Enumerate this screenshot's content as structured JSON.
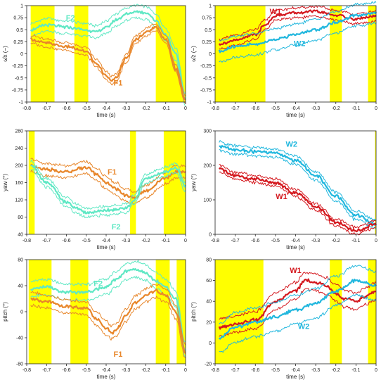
{
  "colors": {
    "shade": "#ffff00",
    "F1": "#e8862a",
    "F2": "#5fe8c4",
    "W1": "#d4181e",
    "W2": "#21b7de"
  },
  "chart_data": [
    {
      "type": "line",
      "id": "panel-tl",
      "xlabel": "time (s)",
      "ylabel": "ω̂x (−)",
      "xlim": [
        -0.8,
        0
      ],
      "ylim": [
        -1,
        1
      ],
      "xticks": [
        -0.8,
        -0.7,
        -0.6,
        -0.5,
        -0.4,
        -0.3,
        -0.2,
        -0.1,
        0
      ],
      "yticks": [
        -1,
        -0.75,
        -0.5,
        -0.25,
        0,
        0.25,
        0.5,
        0.75,
        1
      ],
      "shaded_intervals": [
        [
          -0.78,
          -0.66
        ],
        [
          -0.56,
          -0.49
        ],
        [
          -0.15,
          0
        ]
      ],
      "series": [
        {
          "name": "F2",
          "color": "F2",
          "x": [
            -0.78,
            -0.7,
            -0.6,
            -0.5,
            -0.45,
            -0.4,
            -0.35,
            -0.3,
            -0.25,
            -0.2,
            -0.15,
            -0.1,
            -0.05,
            0
          ],
          "values": [
            0.5,
            0.6,
            0.55,
            0.5,
            0.45,
            0.55,
            0.7,
            0.82,
            0.88,
            0.85,
            0.7,
            0.4,
            0.0,
            -0.95
          ],
          "band": 0.13
        },
        {
          "name": "F1",
          "color": "F1",
          "x": [
            -0.78,
            -0.7,
            -0.6,
            -0.5,
            -0.45,
            -0.4,
            -0.37,
            -0.35,
            -0.3,
            -0.25,
            -0.2,
            -0.15,
            -0.1,
            -0.05,
            0
          ],
          "values": [
            0.3,
            0.22,
            0.15,
            0.05,
            -0.2,
            -0.45,
            -0.55,
            -0.5,
            -0.1,
            0.3,
            0.45,
            0.55,
            0.3,
            -0.3,
            -0.95
          ],
          "band": 0.08
        }
      ],
      "labels": [
        {
          "text": "F2",
          "series": "F2",
          "x": -0.58,
          "y": 0.75
        },
        {
          "text": "F1",
          "series": "F1",
          "x": -0.34,
          "y": -0.6
        }
      ]
    },
    {
      "type": "line",
      "id": "panel-tr",
      "xlabel": "time (s)",
      "ylabel": "ω̂z (−)",
      "xlim": [
        -0.8,
        0
      ],
      "ylim": [
        -1,
        1
      ],
      "xticks": [
        -0.8,
        -0.7,
        -0.6,
        -0.5,
        -0.4,
        -0.3,
        -0.2,
        -0.1,
        0
      ],
      "yticks": [
        -1,
        -0.75,
        -0.5,
        -0.25,
        0,
        0.25,
        0.5,
        0.75,
        1
      ],
      "shaded_intervals": [
        [
          -0.8,
          -0.55
        ],
        [
          -0.23,
          -0.17
        ],
        [
          -0.04,
          0
        ]
      ],
      "series": [
        {
          "name": "W1",
          "color": "W1",
          "x": [
            -0.78,
            -0.7,
            -0.6,
            -0.55,
            -0.5,
            -0.4,
            -0.3,
            -0.2,
            -0.1,
            -0.05,
            0
          ],
          "values": [
            0.2,
            0.28,
            0.4,
            0.6,
            0.8,
            0.85,
            0.88,
            0.8,
            0.72,
            0.75,
            0.78
          ],
          "band": 0.1
        },
        {
          "name": "W2",
          "color": "W2",
          "x": [
            -0.78,
            -0.7,
            -0.6,
            -0.5,
            -0.4,
            -0.3,
            -0.2,
            -0.1,
            0
          ],
          "values": [
            0.05,
            0.15,
            0.2,
            0.3,
            0.4,
            0.5,
            0.65,
            0.8,
            0.85
          ],
          "band": 0.22
        }
      ],
      "labels": [
        {
          "text": "W1",
          "series": "W1",
          "x": -0.5,
          "y": 0.88
        },
        {
          "text": "W2",
          "series": "W2",
          "x": -0.38,
          "y": 0.22
        }
      ]
    },
    {
      "type": "line",
      "id": "panel-ml",
      "xlabel": "time (s)",
      "ylabel": "yaw (°)",
      "xlim": [
        -0.8,
        0
      ],
      "ylim": [
        40,
        280
      ],
      "xticks": [
        -0.8,
        -0.7,
        -0.6,
        -0.5,
        -0.4,
        -0.3,
        -0.2,
        -0.1,
        0
      ],
      "yticks": [
        40,
        80,
        120,
        160,
        200,
        240,
        280
      ],
      "shaded_intervals": [
        [
          -0.79,
          -0.76
        ],
        [
          -0.28,
          -0.25
        ],
        [
          -0.11,
          0
        ]
      ],
      "series": [
        {
          "name": "F1",
          "color": "F1",
          "x": [
            -0.78,
            -0.7,
            -0.6,
            -0.5,
            -0.45,
            -0.4,
            -0.35,
            -0.3,
            -0.26,
            -0.2,
            -0.1,
            -0.05,
            0
          ],
          "values": [
            200,
            190,
            185,
            195,
            180,
            160,
            145,
            130,
            125,
            140,
            170,
            185,
            185
          ],
          "band": 14
        },
        {
          "name": "F2",
          "color": "F2",
          "x": [
            -0.78,
            -0.7,
            -0.6,
            -0.55,
            -0.5,
            -0.4,
            -0.3,
            -0.26,
            -0.2,
            -0.1,
            -0.05,
            0
          ],
          "values": [
            200,
            160,
            115,
            100,
            90,
            95,
            100,
            120,
            170,
            185,
            195,
            150
          ],
          "band": 10
        }
      ],
      "labels": [
        {
          "text": "F1",
          "series": "F1",
          "x": -0.37,
          "y": 185
        },
        {
          "text": "F2",
          "series": "F2",
          "x": -0.35,
          "y": 58
        }
      ]
    },
    {
      "type": "line",
      "id": "panel-mr",
      "xlabel": "time (s)",
      "ylabel": "yaw (°)",
      "xlim": [
        -0.8,
        0
      ],
      "ylim": [
        0,
        300
      ],
      "xticks": [
        -0.8,
        -0.7,
        -0.6,
        -0.5,
        -0.4,
        -0.3,
        -0.2,
        -0.1,
        0
      ],
      "yticks": [
        0,
        100,
        200,
        300
      ],
      "shaded_intervals": [
        [
          -0.005,
          0
        ]
      ],
      "series": [
        {
          "name": "W2",
          "color": "W2",
          "x": [
            -0.78,
            -0.7,
            -0.6,
            -0.5,
            -0.4,
            -0.3,
            -0.2,
            -0.1,
            0
          ],
          "values": [
            255,
            245,
            240,
            235,
            215,
            170,
            110,
            55,
            30
          ],
          "band": 12
        },
        {
          "name": "W1",
          "color": "W1",
          "x": [
            -0.78,
            -0.7,
            -0.6,
            -0.5,
            -0.4,
            -0.3,
            -0.2,
            -0.1,
            0
          ],
          "values": [
            190,
            170,
            160,
            150,
            120,
            80,
            35,
            10,
            30
          ],
          "band": 10
        }
      ],
      "labels": [
        {
          "text": "W2",
          "series": "W2",
          "x": -0.42,
          "y": 262
        },
        {
          "text": "W1",
          "series": "W1",
          "x": -0.47,
          "y": 110
        }
      ]
    },
    {
      "type": "line",
      "id": "panel-bl",
      "xlabel": "time (s)",
      "ylabel": "pitch (°)",
      "xlim": [
        -0.8,
        0
      ],
      "ylim": [
        -80,
        80
      ],
      "xticks": [
        -0.8,
        -0.7,
        -0.6,
        -0.5,
        -0.4,
        -0.3,
        -0.2,
        -0.1,
        0
      ],
      "yticks": [
        -80,
        -40,
        0,
        40,
        80
      ],
      "shaded_intervals": [
        [
          -0.79,
          -0.675
        ],
        [
          -0.58,
          -0.49
        ],
        [
          -0.15,
          -0.08
        ],
        [
          -0.045,
          0
        ]
      ],
      "series": [
        {
          "name": "F2",
          "color": "F2",
          "x": [
            -0.78,
            -0.7,
            -0.6,
            -0.5,
            -0.4,
            -0.35,
            -0.3,
            -0.25,
            -0.2,
            -0.15,
            -0.1,
            -0.05,
            0
          ],
          "values": [
            35,
            38,
            30,
            30,
            38,
            50,
            62,
            65,
            60,
            48,
            38,
            20,
            -60
          ],
          "band": 12
        },
        {
          "name": "F1",
          "color": "F1",
          "x": [
            -0.78,
            -0.7,
            -0.6,
            -0.5,
            -0.45,
            -0.4,
            -0.37,
            -0.35,
            -0.3,
            -0.25,
            -0.2,
            -0.15,
            -0.1,
            -0.05,
            0
          ],
          "values": [
            20,
            15,
            8,
            5,
            -10,
            -25,
            -32,
            -28,
            -5,
            15,
            25,
            32,
            25,
            0,
            -62
          ],
          "band": 10
        }
      ],
      "labels": [
        {
          "text": "F2",
          "series": "F2",
          "x": -0.44,
          "y": 44
        },
        {
          "text": "F1",
          "series": "F1",
          "x": -0.34,
          "y": -65
        }
      ]
    },
    {
      "type": "line",
      "id": "panel-br",
      "xlabel": "time (s)",
      "ylabel": "pitch (°)",
      "xlim": [
        -0.8,
        0
      ],
      "ylim": [
        -20,
        80
      ],
      "xticks": [
        -0.8,
        -0.7,
        -0.6,
        -0.5,
        -0.4,
        -0.3,
        -0.2,
        -0.1,
        0
      ],
      "yticks": [
        -20,
        0,
        20,
        40,
        60,
        80
      ],
      "shaded_intervals": [
        [
          -0.8,
          -0.56
        ],
        [
          -0.23,
          -0.17
        ],
        [
          -0.04,
          0
        ]
      ],
      "series": [
        {
          "name": "W1",
          "color": "W1",
          "x": [
            -0.78,
            -0.7,
            -0.6,
            -0.5,
            -0.4,
            -0.35,
            -0.3,
            -0.25,
            -0.2,
            -0.15,
            -0.1,
            -0.05,
            0
          ],
          "values": [
            15,
            18,
            22,
            40,
            50,
            60,
            58,
            55,
            48,
            42,
            40,
            45,
            50
          ],
          "band": 8
        },
        {
          "name": "W2",
          "color": "W2",
          "x": [
            -0.78,
            -0.7,
            -0.6,
            -0.5,
            -0.4,
            -0.3,
            -0.2,
            -0.1,
            0
          ],
          "values": [
            5,
            15,
            20,
            25,
            32,
            38,
            50,
            60,
            55
          ],
          "band": 14
        }
      ],
      "labels": [
        {
          "text": "W1",
          "series": "W1",
          "x": -0.4,
          "y": 70
        },
        {
          "text": "W2",
          "series": "W2",
          "x": -0.36,
          "y": 16
        }
      ]
    }
  ]
}
